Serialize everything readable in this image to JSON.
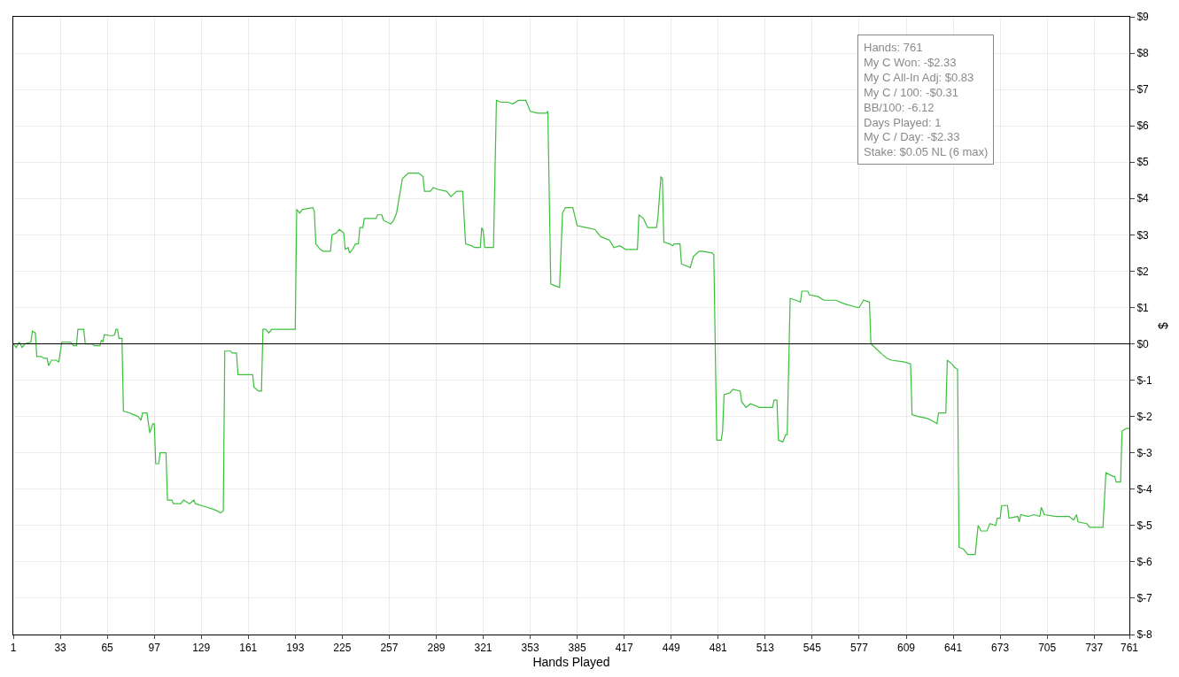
{
  "chart_data": {
    "type": "line",
    "xlabel": "Hands Played",
    "ylabel": "$",
    "x": [
      1,
      3,
      5,
      7,
      9,
      13,
      14,
      16,
      17,
      20,
      22,
      24,
      25,
      27,
      30,
      32,
      34,
      40,
      42,
      44,
      45,
      49,
      50,
      55,
      56,
      60,
      61,
      62,
      63,
      68,
      70,
      71,
      72,
      73,
      75,
      76,
      80,
      83,
      86,
      88,
      89,
      92,
      94,
      96,
      97,
      98,
      100,
      101,
      105,
      106,
      109,
      110,
      115,
      117,
      121,
      124,
      125,
      129,
      133,
      137,
      140,
      142,
      144,
      145,
      149,
      150,
      153,
      154,
      160,
      164,
      165,
      168,
      170,
      171,
      173,
      175,
      177,
      193,
      194,
      196,
      198,
      205,
      206,
      207,
      210,
      212,
      217,
      218,
      221,
      223,
      226,
      227,
      229,
      230,
      232,
      234,
      236,
      237,
      239,
      240,
      248,
      249,
      252,
      253,
      258,
      260,
      262,
      266,
      270,
      277,
      280,
      281,
      285,
      287,
      290,
      296,
      299,
      303,
      307,
      309,
      313,
      315,
      319,
      320,
      321,
      322,
      328,
      330,
      333,
      338,
      341,
      345,
      350,
      353,
      358,
      364,
      365,
      367,
      370,
      373,
      375,
      377,
      382,
      385,
      391,
      397,
      401,
      407,
      410,
      414,
      418,
      426,
      427,
      430,
      433,
      439,
      440,
      442,
      443,
      444,
      448,
      450,
      451,
      455,
      456,
      462,
      464,
      468,
      470,
      477,
      478,
      480,
      483,
      484,
      485,
      489,
      491,
      496,
      497,
      500,
      503,
      509,
      518,
      519,
      521,
      522,
      525,
      527,
      528,
      530,
      534,
      537,
      538,
      542,
      543,
      549,
      553,
      561,
      567,
      576,
      577,
      580,
      584,
      585,
      589,
      593,
      596,
      599,
      608,
      612,
      613,
      617,
      623,
      626,
      630,
      631,
      636,
      637,
      640,
      642,
      644,
      645,
      648,
      651,
      656,
      658,
      660,
      664,
      666,
      670,
      671,
      673,
      674,
      678,
      679,
      685,
      686,
      687,
      692,
      696,
      700,
      701,
      703,
      711,
      720,
      723,
      725,
      726,
      732,
      734,
      743,
      745,
      750,
      751,
      752,
      755,
      756,
      759,
      761
    ],
    "values": [
      0,
      -0.1,
      0.05,
      -0.1,
      0,
      0.05,
      0.35,
      0.3,
      -0.35,
      -0.35,
      -0.4,
      -0.4,
      -0.6,
      -0.45,
      -0.45,
      -0.5,
      0.05,
      0.05,
      -0.05,
      -0.05,
      0.4,
      0.4,
      0,
      0,
      -0.05,
      -0.05,
      0.1,
      0.05,
      0.25,
      0.22,
      0.25,
      0.4,
      0.4,
      0.15,
      0.15,
      -1.85,
      -1.9,
      -1.95,
      -2.0,
      -2.1,
      -1.9,
      -1.9,
      -2.45,
      -2.2,
      -2.2,
      -3.3,
      -3.3,
      -3.0,
      -3.0,
      -4.3,
      -4.3,
      -4.4,
      -4.4,
      -4.3,
      -4.4,
      -4.3,
      -4.4,
      -4.45,
      -4.5,
      -4.55,
      -4.6,
      -4.65,
      -4.6,
      -0.2,
      -0.2,
      -0.25,
      -0.25,
      -0.85,
      -0.85,
      -0.85,
      -1.2,
      -1.3,
      -1.3,
      0.4,
      0.4,
      0.3,
      0.4,
      0.4,
      3.7,
      3.6,
      3.7,
      3.75,
      3.65,
      2.75,
      2.6,
      2.55,
      2.55,
      3.0,
      3.05,
      3.15,
      3.05,
      2.6,
      2.65,
      2.5,
      2.6,
      2.75,
      2.75,
      3.2,
      3.2,
      3.45,
      3.45,
      3.55,
      3.55,
      3.4,
      3.3,
      3.4,
      3.6,
      4.55,
      4.7,
      4.7,
      4.6,
      4.2,
      4.2,
      4.3,
      4.25,
      4.2,
      4.05,
      4.2,
      4.2,
      2.75,
      2.7,
      2.65,
      2.65,
      3.2,
      3.1,
      2.65,
      2.65,
      6.7,
      6.65,
      6.65,
      6.6,
      6.7,
      6.7,
      6.4,
      6.35,
      6.35,
      6.4,
      1.65,
      1.6,
      1.55,
      3.6,
      3.75,
      3.75,
      3.25,
      3.2,
      3.15,
      2.95,
      2.85,
      2.65,
      2.7,
      2.6,
      2.6,
      3.55,
      3.45,
      3.2,
      3.2,
      3.5,
      4.6,
      4.55,
      2.8,
      2.75,
      2.7,
      2.75,
      2.75,
      2.2,
      2.1,
      2.4,
      2.55,
      2.55,
      2.5,
      2.45,
      -2.65,
      -2.65,
      -2.4,
      -1.4,
      -1.35,
      -1.25,
      -1.3,
      -1.6,
      -1.75,
      -1.65,
      -1.75,
      -1.75,
      -1.55,
      -1.55,
      -2.65,
      -2.7,
      -2.5,
      -2.5,
      1.25,
      1.2,
      1.15,
      1.45,
      1.45,
      1.35,
      1.3,
      1.2,
      1.2,
      1.1,
      1.0,
      1.0,
      1.2,
      1.15,
      0,
      -0.15,
      -0.3,
      -0.4,
      -0.45,
      -0.5,
      -0.55,
      -1.95,
      -2.0,
      -2.05,
      -2.1,
      -2.2,
      -1.9,
      -1.9,
      -0.45,
      -0.55,
      -0.65,
      -0.7,
      -5.6,
      -5.65,
      -5.8,
      -5.8,
      -5.0,
      -5.15,
      -5.15,
      -4.95,
      -5.0,
      -4.8,
      -4.8,
      -4.45,
      -4.45,
      -4.8,
      -4.75,
      -4.9,
      -4.7,
      -4.75,
      -4.7,
      -4.75,
      -4.5,
      -4.7,
      -4.75,
      -4.75,
      -4.85,
      -4.7,
      -4.9,
      -4.95,
      -5.05,
      -5.05,
      -3.55,
      -3.65,
      -3.65,
      -3.8,
      -3.8,
      -2.4,
      -2.33,
      -2.33
    ],
    "color": "#3cbf3c",
    "xlim": [
      1,
      761
    ],
    "xticks": [
      1,
      33,
      65,
      97,
      129,
      161,
      193,
      225,
      257,
      289,
      321,
      353,
      385,
      417,
      449,
      481,
      513,
      545,
      577,
      609,
      641,
      673,
      705,
      737,
      761
    ],
    "ylim": [
      -8,
      9
    ],
    "yticks": [
      {
        "value": 9,
        "label": "$9"
      },
      {
        "value": 8,
        "label": "$8"
      },
      {
        "value": 7,
        "label": "$7"
      },
      {
        "value": 6,
        "label": "$6"
      },
      {
        "value": 5,
        "label": "$5"
      },
      {
        "value": 4,
        "label": "$4"
      },
      {
        "value": 3,
        "label": "$3"
      },
      {
        "value": 2,
        "label": "$2"
      },
      {
        "value": 1,
        "label": "$1"
      },
      {
        "value": 0,
        "label": "$0"
      },
      {
        "value": -1,
        "label": "$-1"
      },
      {
        "value": -2,
        "label": "$-2"
      },
      {
        "value": -3,
        "label": "$-3"
      },
      {
        "value": -4,
        "label": "$-4"
      },
      {
        "value": -5,
        "label": "$-5"
      },
      {
        "value": -6,
        "label": "$-6"
      },
      {
        "value": -7,
        "label": "$-7"
      },
      {
        "value": -8,
        "label": "$-8"
      }
    ],
    "ref_lines": [
      {
        "axis": "y",
        "value": 0,
        "color": "#000000"
      }
    ],
    "grid": true,
    "annotations": [
      "Hands: 761",
      "My C Won: -$2.33",
      "My C All-In Adj: $0.83",
      "My C / 100: -$0.31",
      "BB/100: -6.12",
      "Days Played: 1",
      "My C / Day: -$2.33",
      "Stake: $0.05 NL (6 max)"
    ]
  }
}
